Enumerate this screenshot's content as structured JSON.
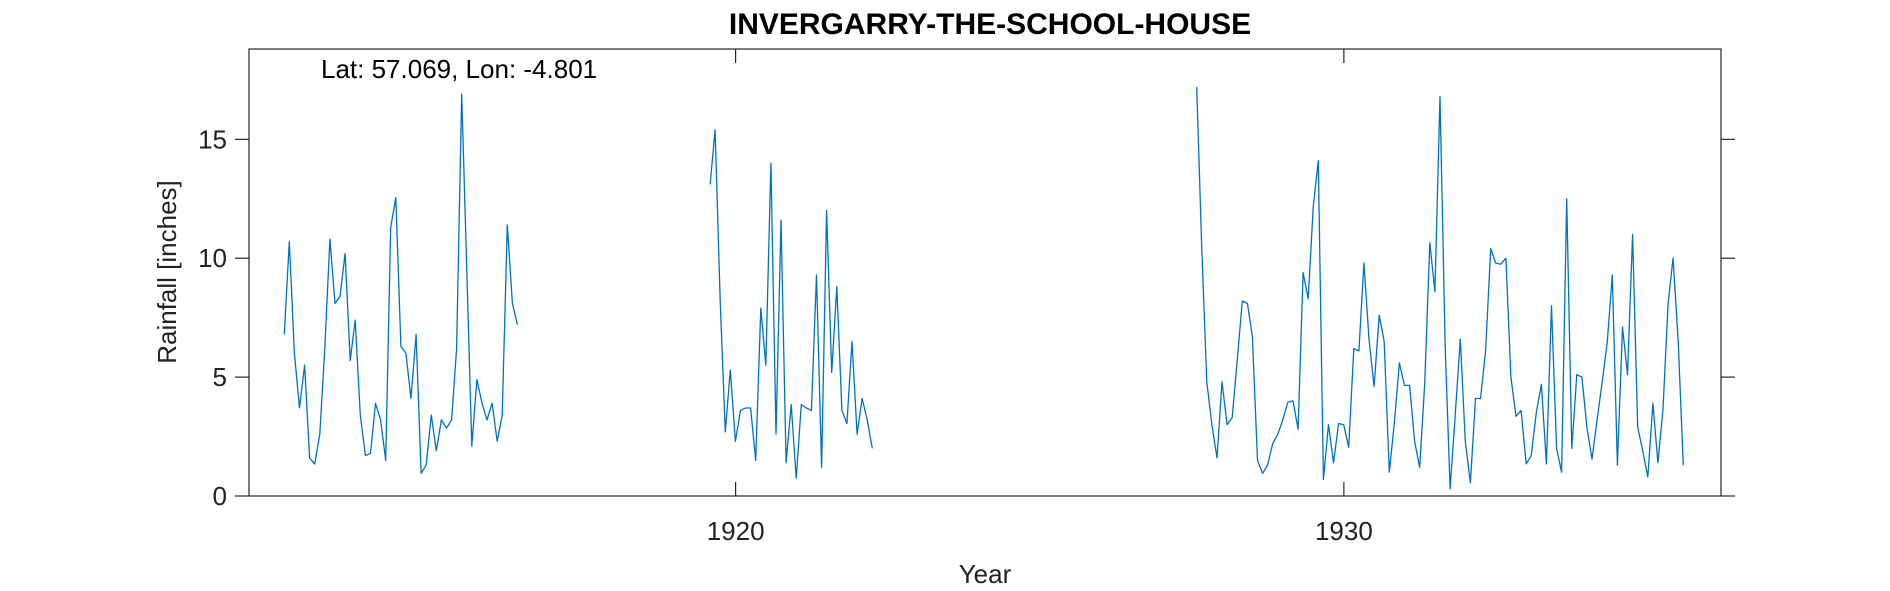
{
  "chart_data": {
    "type": "line",
    "title": "INVERGARRY-THE-SCHOOL-HOUSE",
    "xlabel": "Year",
    "ylabel": "Rainfall [inches]",
    "annotation": "Lat: 57.069, Lon: -4.801",
    "xlim": [
      1912.0,
      1936.2
    ],
    "ylim": [
      0,
      18.8
    ],
    "xticks": [
      1920,
      1930
    ],
    "yticks": [
      0,
      5,
      10,
      15
    ],
    "grid": false,
    "series": [
      {
        "name": "Rainfall",
        "color": "#0072BD",
        "segments": [
          {
            "start": 1912.58,
            "values": [
              6.8,
              10.7,
              6.0,
              3.7,
              5.5,
              1.6,
              1.35,
              2.6,
              6.2,
              10.8,
              8.1,
              8.4,
              10.2,
              5.7,
              7.4,
              3.4,
              1.7,
              1.8,
              3.9,
              3.2,
              1.5,
              11.3,
              12.55,
              6.3,
              6.0,
              4.1,
              6.8,
              0.95,
              1.3,
              3.4,
              1.9,
              3.2,
              2.85,
              3.2,
              6.2,
              16.9,
              9.5,
              2.1,
              4.9,
              3.9,
              3.2,
              3.9,
              2.3,
              3.4,
              11.4,
              8.1,
              7.2
            ]
          },
          {
            "start": 1919.58,
            "values": [
              13.1,
              15.4,
              8.2,
              2.7,
              5.3,
              2.3,
              3.6,
              3.7,
              3.7,
              1.5,
              7.9,
              5.5,
              14.0,
              2.6,
              11.6,
              1.4,
              3.85,
              0.75,
              3.85,
              3.7,
              3.6,
              9.3,
              1.2,
              12.0,
              5.2,
              8.8,
              3.6,
              3.05,
              6.5,
              2.6,
              4.1,
              3.2,
              2.0
            ]
          },
          {
            "start": 1927.58,
            "values": [
              17.2,
              10.5,
              4.8,
              3.0,
              1.6,
              4.8,
              3.0,
              3.3,
              5.7,
              8.2,
              8.1,
              6.7,
              1.5,
              0.95,
              1.3,
              2.2,
              2.6,
              3.2,
              3.95,
              4.0,
              2.8,
              9.4,
              8.3,
              12.2,
              14.1,
              0.7,
              3.0,
              1.4,
              3.05,
              3.0,
              2.05,
              6.2,
              6.1,
              9.8,
              6.6,
              4.6,
              7.6,
              6.5,
              1.0,
              3.1,
              5.6,
              4.65,
              4.65,
              2.3,
              1.2,
              4.8,
              10.65,
              8.6,
              16.8,
              6.4,
              0.3,
              3.4,
              6.6,
              2.3,
              0.55,
              4.1,
              4.1,
              6.1,
              10.4,
              9.8,
              9.75,
              10.0,
              5.0,
              3.35,
              3.6,
              1.35,
              1.7,
              3.5,
              4.7,
              1.35,
              8.0,
              2.0,
              1.0,
              12.5,
              2.0,
              5.1,
              5.0,
              2.85,
              1.55,
              3.2,
              4.8,
              6.5,
              9.3,
              1.3,
              7.1,
              5.1,
              11.0,
              2.9,
              1.9,
              0.8,
              3.9,
              1.4,
              3.65,
              8.1,
              10.0,
              6.5,
              1.3
            ]
          }
        ]
      }
    ]
  }
}
